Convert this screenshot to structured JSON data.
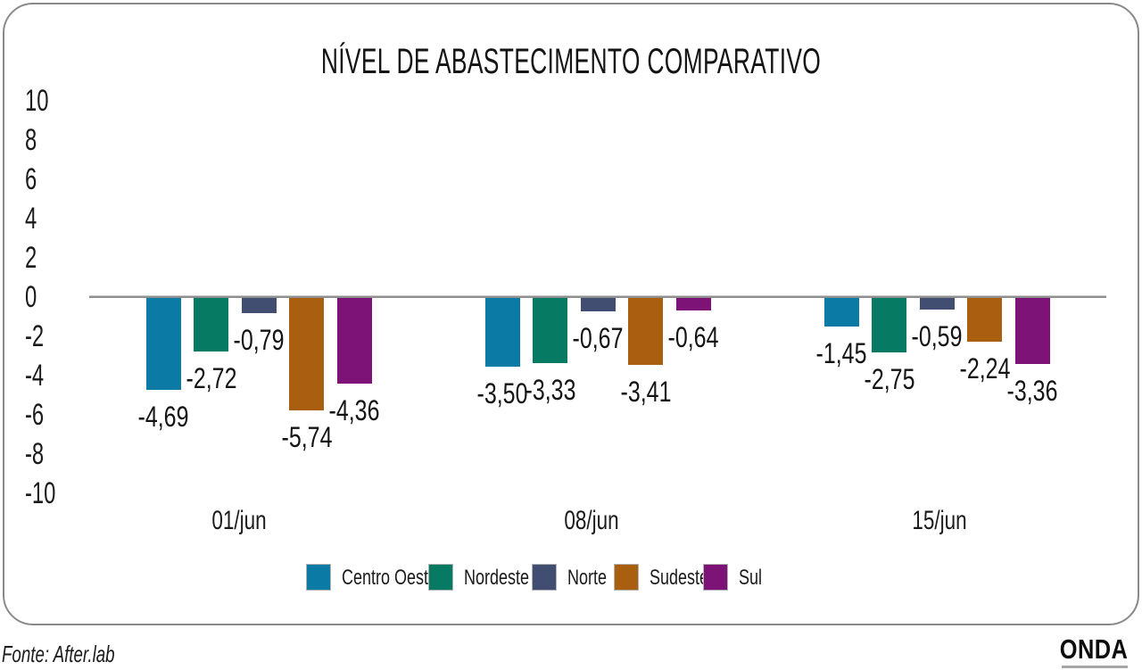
{
  "title": "NÍVEL DE ABASTECIMENTO COMPARATIVO",
  "chart_data": {
    "type": "bar",
    "categories": [
      "01/jun",
      "08/jun",
      "15/jun"
    ],
    "series": [
      {
        "name": "Centro Oeste",
        "color": "#0b7aa5",
        "values": [
          -4.69,
          -3.5,
          -1.45
        ],
        "labels": [
          "-4,69",
          "-3,50",
          "-1,45"
        ]
      },
      {
        "name": "Nordeste",
        "color": "#067a62",
        "values": [
          -2.72,
          -3.33,
          -2.75
        ],
        "labels": [
          "-2,72",
          "-3,33",
          "-2,75"
        ]
      },
      {
        "name": "Norte",
        "color": "#424d72",
        "values": [
          -0.79,
          -0.67,
          -0.59
        ],
        "labels": [
          "-0,79",
          "-0,67",
          "-0,59"
        ]
      },
      {
        "name": "Sudeste",
        "color": "#a95e10",
        "values": [
          -5.74,
          -3.41,
          -2.24
        ],
        "labels": [
          "-5,74",
          "-3,41",
          "-2,24"
        ]
      },
      {
        "name": "Sul",
        "color": "#7d1277",
        "values": [
          -4.36,
          -0.64,
          -3.36
        ],
        "labels": [
          "-4,36",
          "-0,64",
          "-3,36"
        ]
      }
    ],
    "yticks": [
      10,
      8,
      6,
      4,
      2,
      0,
      -2,
      -4,
      -6,
      -8,
      -10
    ],
    "ytick_labels": [
      "10",
      "8",
      "6",
      "4",
      "2",
      "0",
      "-2",
      "-4",
      "-6",
      "-8",
      "-10"
    ],
    "ylim": [
      -10,
      10
    ],
    "grid": false,
    "legend_position": "bottom",
    "axis_line_color": "#8f8f8f"
  },
  "footer": {
    "source": "Fonte: After.lab",
    "logo": "ONDA"
  }
}
